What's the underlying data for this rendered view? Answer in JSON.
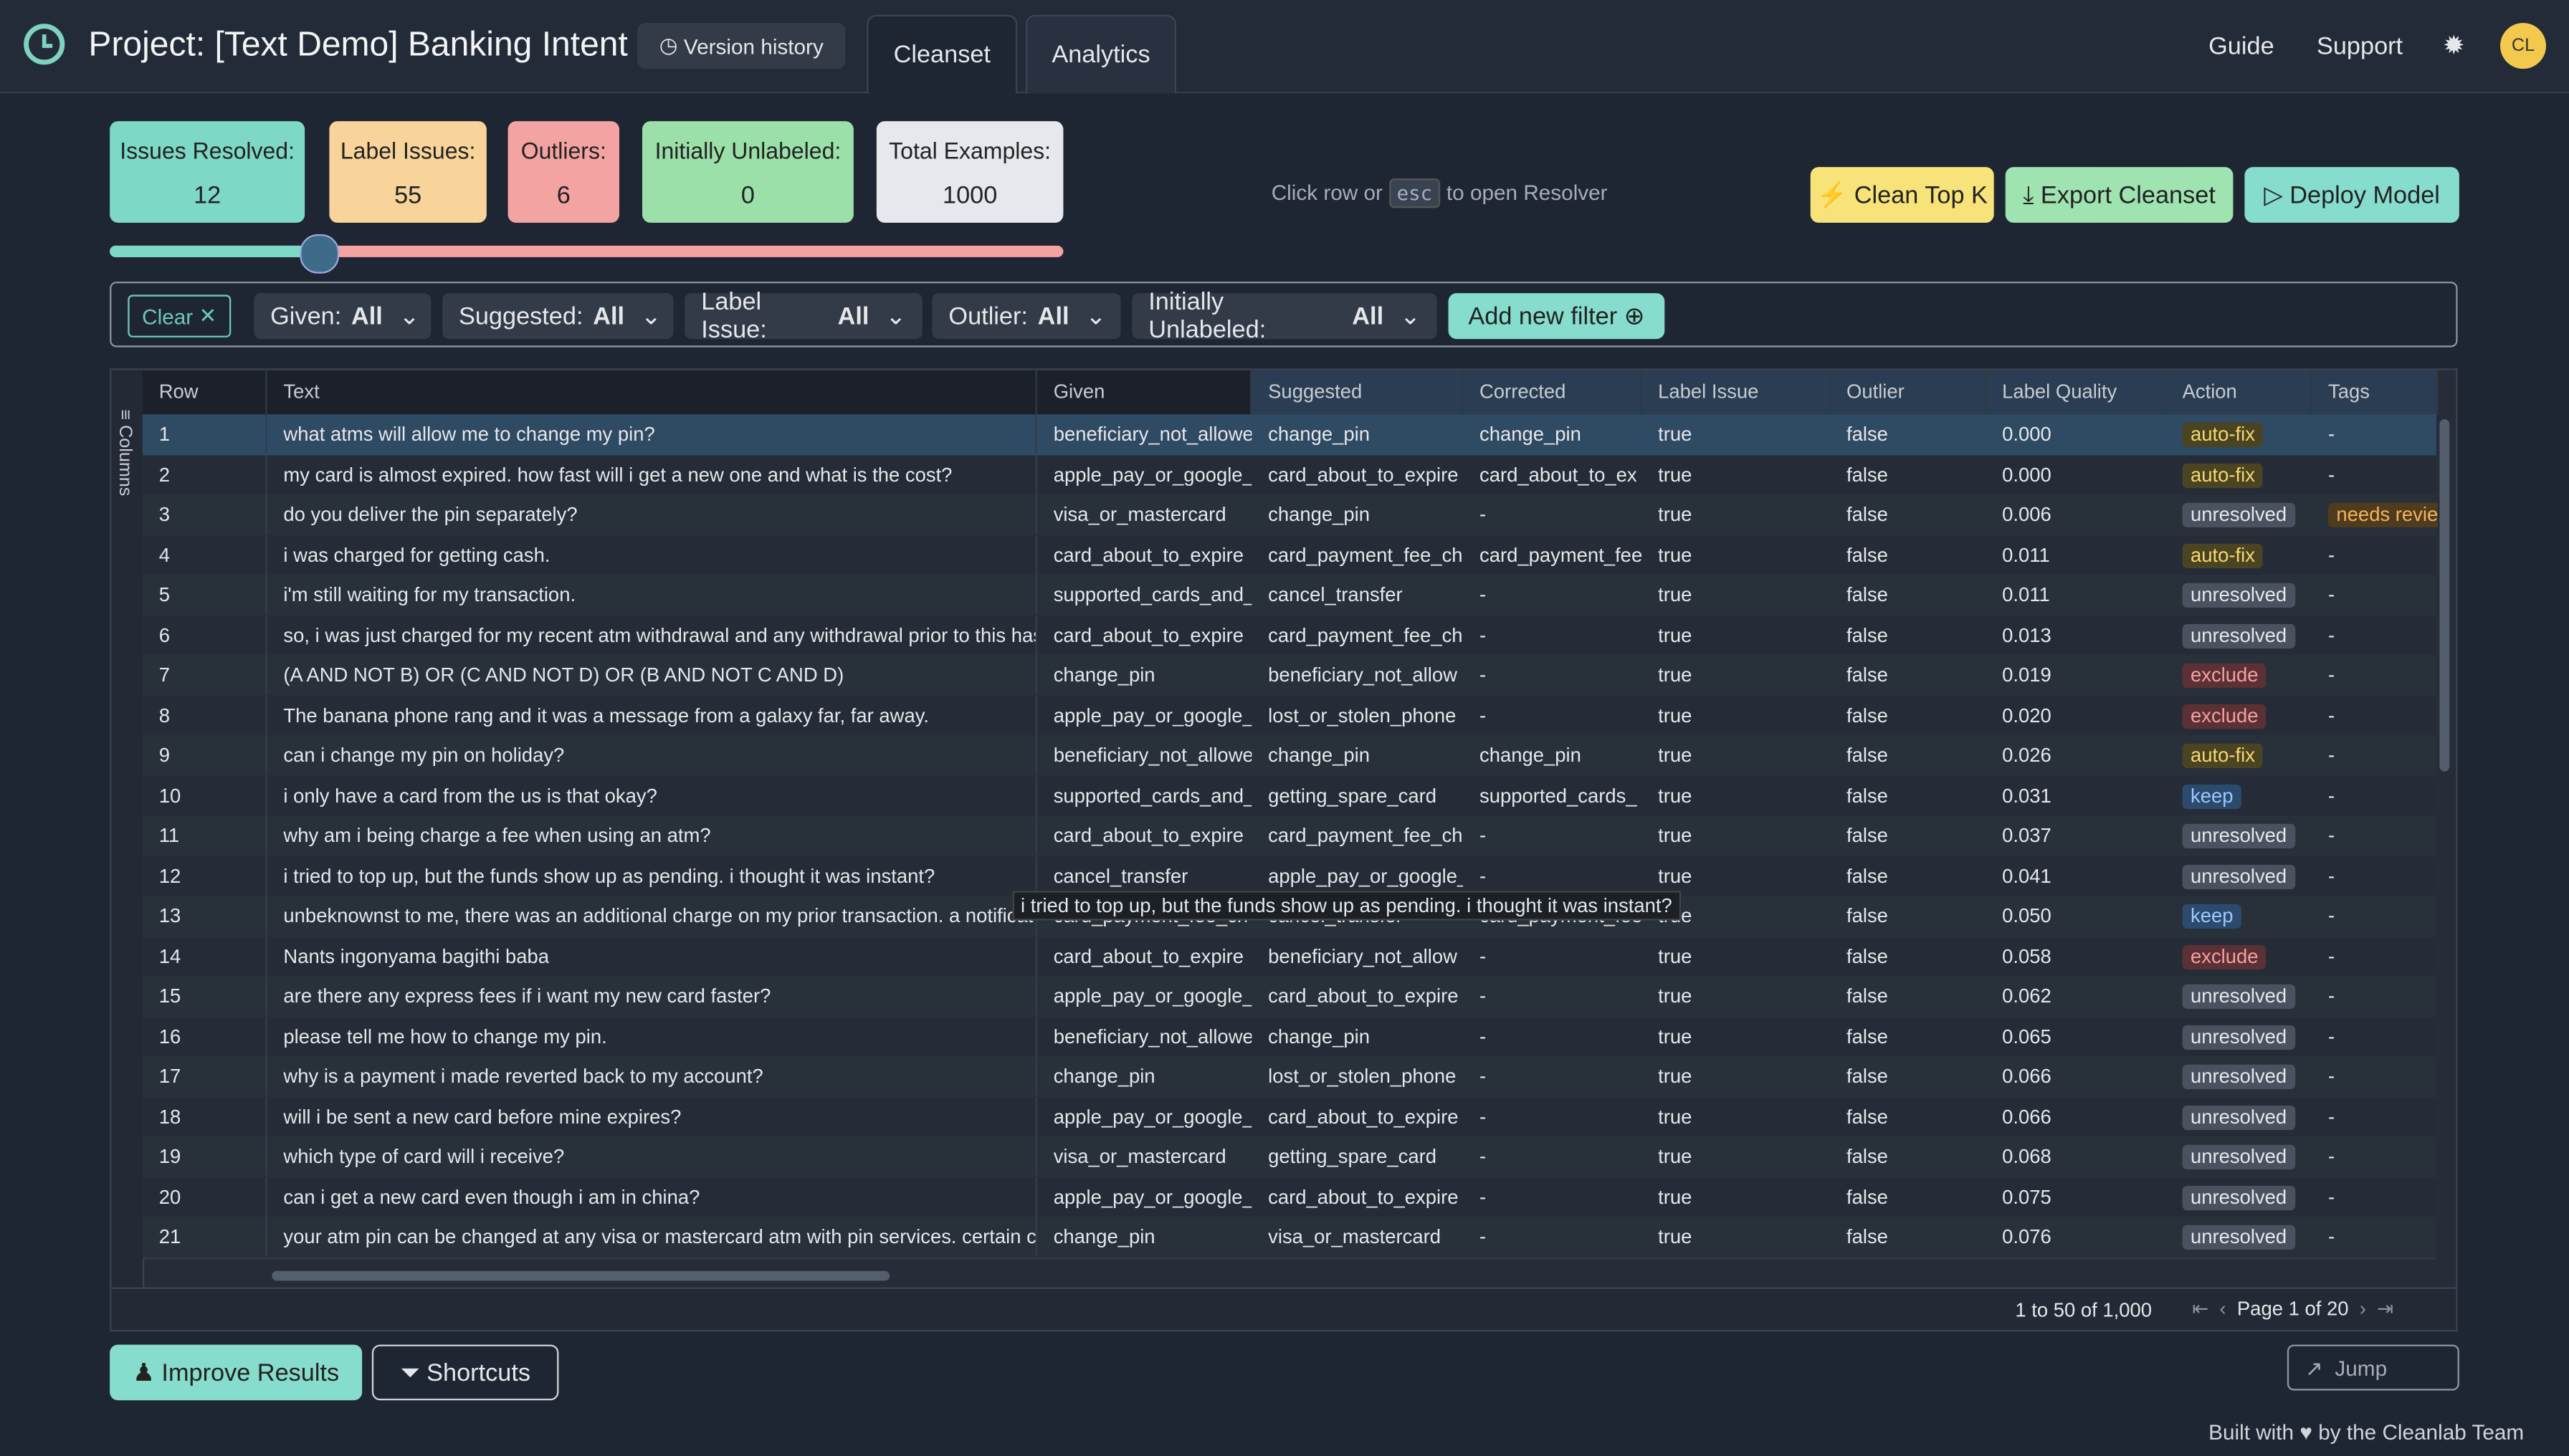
{
  "header": {
    "title": "Project: [Text Demo] Banking Intent",
    "version_history": "Version history",
    "tabs": [
      "Cleanset",
      "Analytics"
    ],
    "links": [
      "Guide",
      "Support"
    ],
    "avatar": "CL"
  },
  "stats": [
    {
      "label": "Issues Resolved:",
      "value": "12"
    },
    {
      "label": "Label Issues:",
      "value": "55"
    },
    {
      "label": "Outliers:",
      "value": "6"
    },
    {
      "label": "Initially Unlabeled:",
      "value": "0"
    },
    {
      "label": "Total Examples:",
      "value": "1000"
    }
  ],
  "hint": {
    "before": "Click row or",
    "key": "esc",
    "after": "to open Resolver"
  },
  "actions": [
    "Clean Top K",
    "Export Cleanset",
    "Deploy Model"
  ],
  "filters": {
    "clear": "Clear",
    "items": [
      {
        "name": "Given:",
        "value": "All"
      },
      {
        "name": "Suggested:",
        "value": "All"
      },
      {
        "name": "Label Issue:",
        "value": "All"
      },
      {
        "name": "Outlier:",
        "value": "All"
      },
      {
        "name": "Initially Unlabeled:",
        "value": "All"
      }
    ],
    "add": "Add new filter"
  },
  "table": {
    "side_label": "Columns",
    "columns": [
      "Row",
      "Text",
      "Given",
      "Suggested",
      "Corrected",
      "Label Issue",
      "Outlier",
      "Label Quality",
      "Action",
      "Tags"
    ],
    "rows": [
      [
        "1",
        "what atms will allow me to change my pin?",
        "beneficiary_not_allowe",
        "change_pin",
        "change_pin",
        "true",
        "false",
        "0.000",
        "auto-fix",
        "-"
      ],
      [
        "2",
        "my card is almost expired. how fast will i get a new one and what is the cost?",
        "apple_pay_or_google_",
        "card_about_to_expire",
        "card_about_to_ex",
        "true",
        "false",
        "0.000",
        "auto-fix",
        "-"
      ],
      [
        "3",
        "do you deliver the pin separately?",
        "visa_or_mastercard",
        "change_pin",
        "-",
        "true",
        "false",
        "0.006",
        "unresolved",
        "needs revie"
      ],
      [
        "4",
        "i was charged for getting cash.",
        "card_about_to_expire",
        "card_payment_fee_ch",
        "card_payment_fee",
        "true",
        "false",
        "0.011",
        "auto-fix",
        "-"
      ],
      [
        "5",
        "i'm still waiting for my transaction.",
        "supported_cards_and_",
        "cancel_transfer",
        "-",
        "true",
        "false",
        "0.011",
        "unresolved",
        "-"
      ],
      [
        "6",
        "so, i was just charged for my recent atm withdrawal and any withdrawal prior to this has",
        "card_about_to_expire",
        "card_payment_fee_ch",
        "-",
        "true",
        "false",
        "0.013",
        "unresolved",
        "-"
      ],
      [
        "7",
        "(A AND NOT B) OR (C AND NOT D) OR (B AND NOT C AND D)",
        "change_pin",
        "beneficiary_not_allow",
        "-",
        "true",
        "false",
        "0.019",
        "exclude",
        "-"
      ],
      [
        "8",
        "The banana phone rang and it was a message from a galaxy far, far away.",
        "apple_pay_or_google_",
        "lost_or_stolen_phone",
        "-",
        "true",
        "false",
        "0.020",
        "exclude",
        "-"
      ],
      [
        "9",
        "can i change my pin on holiday?",
        "beneficiary_not_allowe",
        "change_pin",
        "change_pin",
        "true",
        "false",
        "0.026",
        "auto-fix",
        "-"
      ],
      [
        "10",
        "i only have a card from the us is that okay?",
        "supported_cards_and_",
        "getting_spare_card",
        "supported_cards_",
        "true",
        "false",
        "0.031",
        "keep",
        "-"
      ],
      [
        "11",
        "why am i being charge a fee when using an atm?",
        "card_about_to_expire",
        "card_payment_fee_ch",
        "-",
        "true",
        "false",
        "0.037",
        "unresolved",
        "-"
      ],
      [
        "12",
        "i tried to top up, but the funds show up as pending. i thought it was instant?",
        "cancel_transfer",
        "apple_pay_or_google_",
        "-",
        "true",
        "false",
        "0.041",
        "unresolved",
        "-"
      ],
      [
        "13",
        "unbeknownst to me, there was an additional charge on my prior transaction. a notificat",
        "card_payment_fee_ch",
        "cancel_transfer",
        "card_payment_fee",
        "true",
        "false",
        "0.050",
        "keep",
        "-"
      ],
      [
        "14",
        "Nants ingonyama bagithi baba",
        "card_about_to_expire",
        "beneficiary_not_allow",
        "-",
        "true",
        "false",
        "0.058",
        "exclude",
        "-"
      ],
      [
        "15",
        "are there any express fees if i want my new card faster?",
        "apple_pay_or_google_",
        "card_about_to_expire",
        "-",
        "true",
        "false",
        "0.062",
        "unresolved",
        "-"
      ],
      [
        "16",
        "please tell me how to change my pin.",
        "beneficiary_not_allowe",
        "change_pin",
        "-",
        "true",
        "false",
        "0.065",
        "unresolved",
        "-"
      ],
      [
        "17",
        "why is a payment i made reverted back to my account?",
        "change_pin",
        "lost_or_stolen_phone",
        "-",
        "true",
        "false",
        "0.066",
        "unresolved",
        "-"
      ],
      [
        "18",
        "will i be sent a new card before mine expires?",
        "apple_pay_or_google_",
        "card_about_to_expire",
        "-",
        "true",
        "false",
        "0.066",
        "unresolved",
        "-"
      ],
      [
        "19",
        "which type of card will i receive?",
        "visa_or_mastercard",
        "getting_spare_card",
        "-",
        "true",
        "false",
        "0.068",
        "unresolved",
        "-"
      ],
      [
        "20",
        "can i get a new card even though i am in china?",
        "apple_pay_or_google_",
        "card_about_to_expire",
        "-",
        "true",
        "false",
        "0.075",
        "unresolved",
        "-"
      ],
      [
        "21",
        "your atm pin can be changed at any visa or mastercard atm with pin services. certain c",
        "change_pin",
        "visa_or_mastercard",
        "-",
        "true",
        "false",
        "0.076",
        "unresolved",
        "-"
      ]
    ],
    "tooltip": "i tried to top up, but the funds show up as pending. i thought it was instant?",
    "range": "1 to 50 of 1,000",
    "page": "Page 1 of 20"
  },
  "footer": {
    "improve": "Improve Results",
    "shortcuts": "Shortcuts",
    "jump": "Jump",
    "built_before": "Built with",
    "built_after": "by the Cleanlab Team"
  }
}
